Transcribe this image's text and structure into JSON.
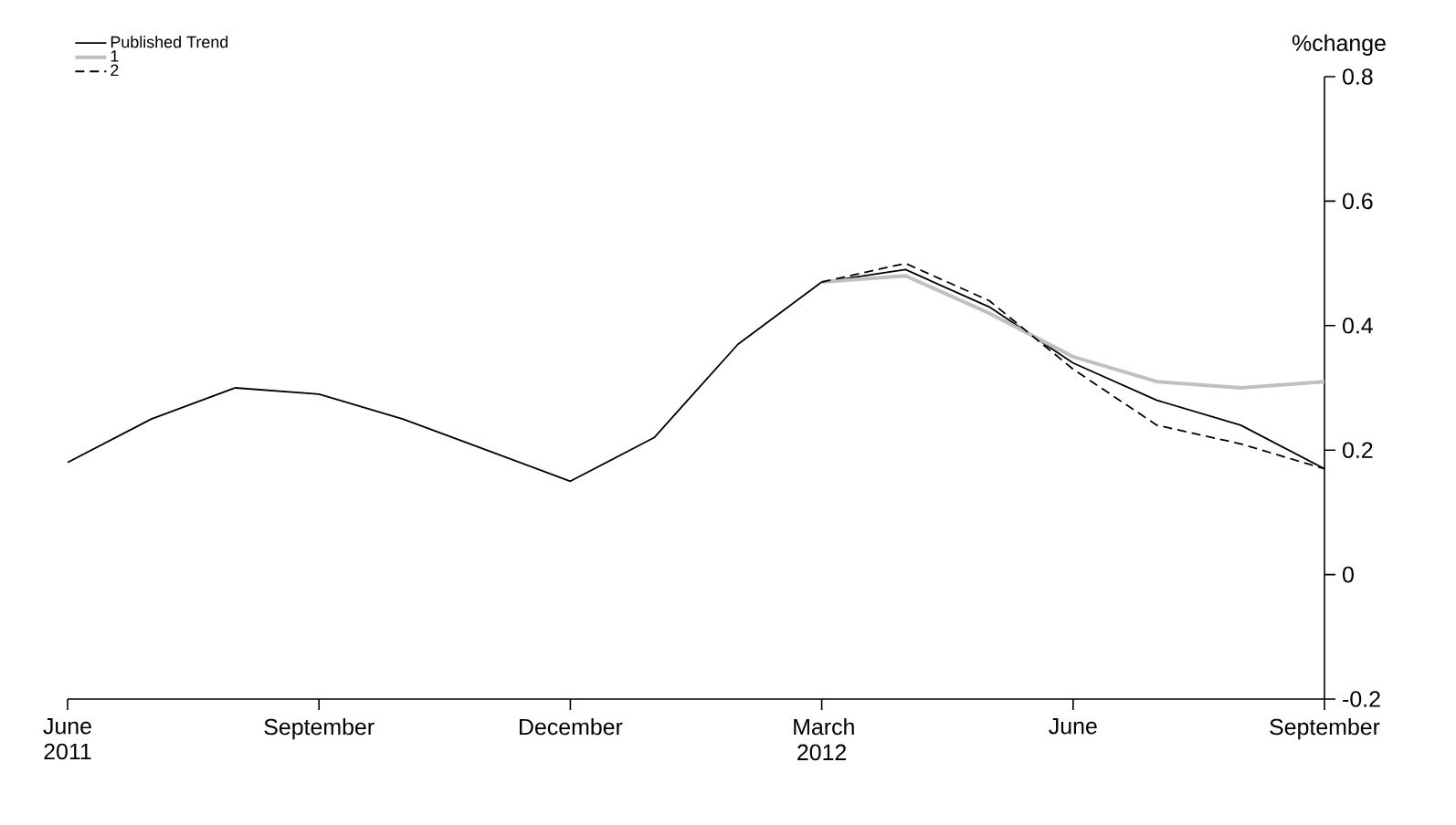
{
  "chart_data": {
    "type": "line",
    "ylabel": "%change",
    "x": [
      "2011-06",
      "2011-07",
      "2011-08",
      "2011-09",
      "2011-10",
      "2011-11",
      "2011-12",
      "2012-01",
      "2012-02",
      "2012-03",
      "2012-04",
      "2012-05",
      "2012-06",
      "2012-07",
      "2012-08",
      "2012-09"
    ],
    "series": [
      {
        "name": "Published Trend",
        "color": "#000000",
        "line_style": "solid",
        "values": [
          0.18,
          0.25,
          0.3,
          0.29,
          0.25,
          0.2,
          0.15,
          0.22,
          0.37,
          0.47,
          0.49,
          0.43,
          0.34,
          0.28,
          0.24,
          0.17
        ]
      },
      {
        "name": "1",
        "color": "#c0c0c0",
        "line_style": "solid",
        "values": [
          null,
          null,
          null,
          null,
          null,
          null,
          null,
          null,
          null,
          0.47,
          0.48,
          0.42,
          0.35,
          0.31,
          0.3,
          0.31
        ]
      },
      {
        "name": "2",
        "color": "#000000",
        "line_style": "dashed",
        "values": [
          null,
          null,
          null,
          null,
          null,
          null,
          null,
          null,
          null,
          0.47,
          0.5,
          0.44,
          0.33,
          0.24,
          0.21,
          0.17
        ]
      }
    ],
    "xlim": [
      "2011-06",
      "2012-09"
    ],
    "xticks": [
      {
        "value": "2011-06",
        "label": "June 2011"
      },
      {
        "value": "2011-09",
        "label": "September"
      },
      {
        "value": "2011-12",
        "label": "December"
      },
      {
        "value": "2012-03",
        "label": "March 2012"
      },
      {
        "value": "2012-06",
        "label": "June"
      },
      {
        "value": "2012-09",
        "label": "September"
      }
    ],
    "ylim": [
      -0.2,
      0.8
    ],
    "yticks": [
      -0.2,
      0,
      0.2,
      0.4,
      0.6,
      0.8
    ],
    "grid": false,
    "legend": "top left",
    "marker": "none"
  }
}
